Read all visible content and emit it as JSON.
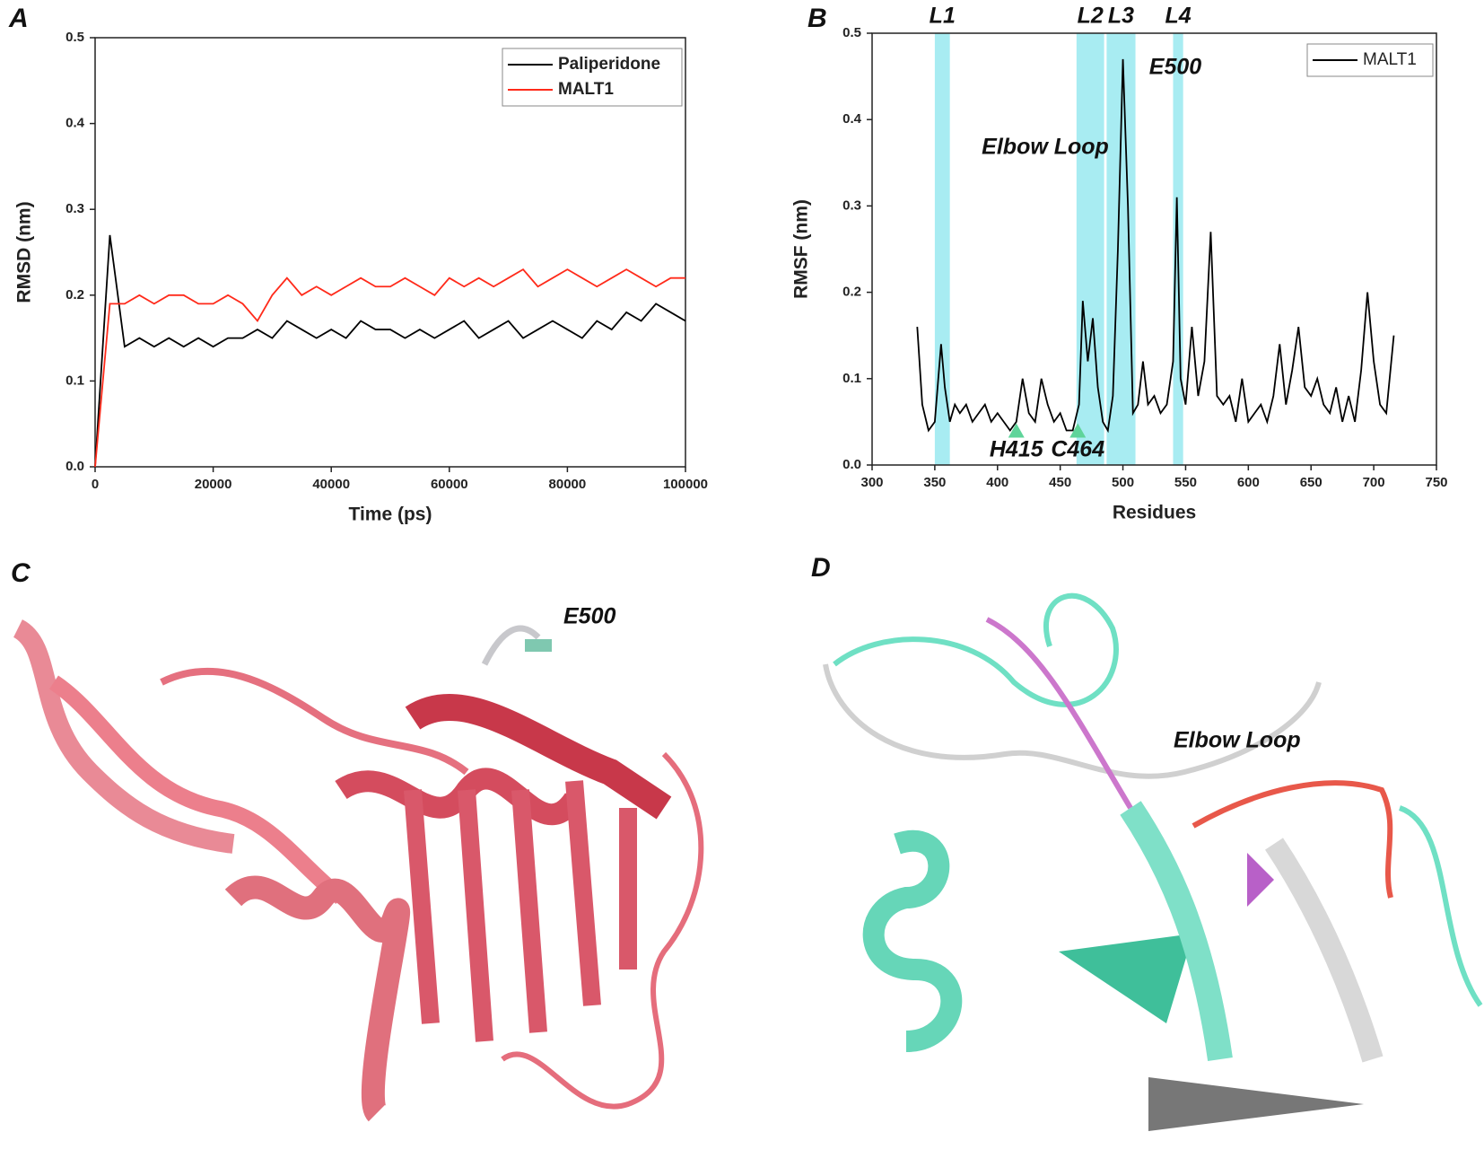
{
  "chart_data": [
    {
      "type": "line",
      "panel": "A",
      "xlabel": "Time (ps)",
      "ylabel": "RMSD (nm)",
      "x": [
        0,
        2500,
        5000,
        7500,
        10000,
        12500,
        15000,
        17500,
        20000,
        22500,
        25000,
        27500,
        30000,
        32500,
        35000,
        37500,
        40000,
        42500,
        45000,
        47500,
        50000,
        52500,
        55000,
        57500,
        60000,
        62500,
        65000,
        67500,
        70000,
        72500,
        75000,
        77500,
        80000,
        82500,
        85000,
        87500,
        90000,
        92500,
        95000,
        97500,
        100000
      ],
      "series": [
        {
          "name": "Paliperidone",
          "color": "#000000",
          "values": [
            0,
            0.27,
            0.14,
            0.15,
            0.14,
            0.15,
            0.14,
            0.15,
            0.14,
            0.15,
            0.15,
            0.16,
            0.15,
            0.17,
            0.16,
            0.15,
            0.16,
            0.15,
            0.17,
            0.16,
            0.16,
            0.15,
            0.16,
            0.15,
            0.16,
            0.17,
            0.15,
            0.16,
            0.17,
            0.15,
            0.16,
            0.17,
            0.16,
            0.15,
            0.17,
            0.16,
            0.18,
            0.17,
            0.19,
            0.18,
            0.17
          ]
        },
        {
          "name": "MALT1",
          "color": "#ff2a1a",
          "values": [
            0,
            0.19,
            0.19,
            0.2,
            0.19,
            0.2,
            0.2,
            0.19,
            0.19,
            0.2,
            0.19,
            0.17,
            0.2,
            0.22,
            0.2,
            0.21,
            0.2,
            0.21,
            0.22,
            0.21,
            0.21,
            0.22,
            0.21,
            0.2,
            0.22,
            0.21,
            0.22,
            0.21,
            0.22,
            0.23,
            0.21,
            0.22,
            0.23,
            0.22,
            0.21,
            0.22,
            0.23,
            0.22,
            0.21,
            0.22,
            0.22
          ]
        }
      ],
      "xlim": [
        0,
        100000
      ],
      "xticks": [
        0,
        20000,
        40000,
        60000,
        80000,
        100000
      ],
      "ylim": [
        0,
        0.5
      ],
      "yticks": [
        {
          "value": 0,
          "label": "0.0"
        },
        0.1,
        0.2,
        0.3,
        0.4,
        0.5
      ],
      "legend": "upper right"
    },
    {
      "type": "line",
      "panel": "B",
      "xlabel": "Residues",
      "ylabel": "RMSF (nm)",
      "x": [
        336,
        340,
        345,
        350,
        355,
        358,
        362,
        366,
        370,
        375,
        380,
        385,
        390,
        395,
        400,
        405,
        410,
        415,
        420,
        425,
        430,
        435,
        440,
        445,
        450,
        455,
        460,
        465,
        468,
        472,
        476,
        480,
        484,
        488,
        492,
        496,
        500,
        504,
        508,
        512,
        516,
        520,
        525,
        530,
        535,
        540,
        543,
        546,
        550,
        555,
        560,
        565,
        570,
        575,
        580,
        585,
        590,
        595,
        600,
        605,
        610,
        615,
        620,
        625,
        630,
        635,
        640,
        645,
        650,
        655,
        660,
        665,
        670,
        675,
        680,
        685,
        690,
        695,
        700,
        705,
        710,
        716
      ],
      "series": [
        {
          "name": "MALT1",
          "color": "#000000",
          "values": [
            0.16,
            0.07,
            0.04,
            0.05,
            0.14,
            0.09,
            0.05,
            0.07,
            0.06,
            0.07,
            0.05,
            0.06,
            0.07,
            0.05,
            0.06,
            0.05,
            0.04,
            0.05,
            0.1,
            0.06,
            0.05,
            0.1,
            0.07,
            0.05,
            0.06,
            0.04,
            0.04,
            0.07,
            0.19,
            0.12,
            0.17,
            0.09,
            0.05,
            0.04,
            0.08,
            0.25,
            0.47,
            0.3,
            0.06,
            0.07,
            0.12,
            0.07,
            0.08,
            0.06,
            0.07,
            0.12,
            0.31,
            0.1,
            0.07,
            0.16,
            0.08,
            0.12,
            0.27,
            0.08,
            0.07,
            0.08,
            0.05,
            0.1,
            0.05,
            0.06,
            0.07,
            0.05,
            0.08,
            0.14,
            0.07,
            0.11,
            0.16,
            0.09,
            0.08,
            0.1,
            0.07,
            0.06,
            0.09,
            0.05,
            0.08,
            0.05,
            0.11,
            0.2,
            0.12,
            0.07,
            0.06,
            0.15
          ]
        }
      ],
      "xlim": [
        300,
        750
      ],
      "xticks": [
        300,
        350,
        400,
        450,
        500,
        550,
        600,
        650,
        700,
        750
      ],
      "ylim": [
        0,
        0.5
      ],
      "yticks": [
        {
          "value": 0,
          "label": "0.0"
        },
        0.1,
        0.2,
        0.3,
        0.4,
        0.5
      ],
      "legend": "upper right",
      "bands": [
        {
          "label": "L1",
          "range": [
            350,
            362
          ]
        },
        {
          "label": "L2",
          "range": [
            463,
            485
          ]
        },
        {
          "label": "L3",
          "range": [
            487,
            510
          ]
        },
        {
          "label": "L4",
          "range": [
            540,
            548
          ]
        }
      ],
      "band_color": "#a8ecf2",
      "markers": [
        {
          "label": "H415",
          "x": 415,
          "y": 0.04
        },
        {
          "label": "C464",
          "x": 464,
          "y": 0.04
        }
      ],
      "marker_color": "#5fd49a",
      "annotations": [
        "Elbow Loop",
        "E500"
      ]
    }
  ],
  "images": [
    {
      "panel": "C",
      "labels": [
        "E500"
      ]
    },
    {
      "panel": "D",
      "labels": [
        "Elbow Loop"
      ]
    }
  ]
}
